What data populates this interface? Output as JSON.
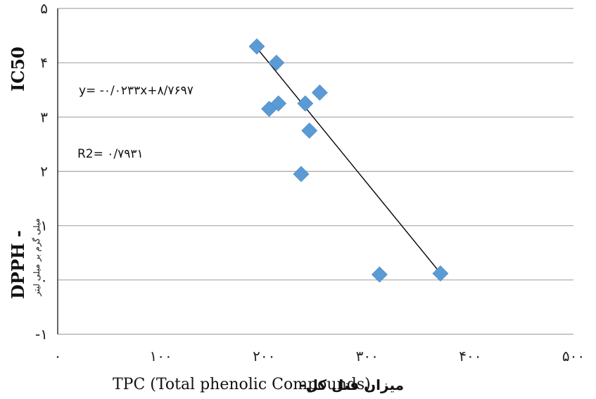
{
  "chart_data": {
    "type": "scatter",
    "title": "",
    "xlabel": "TPC (Total phenolic Compounds)",
    "xlabel_fa": "میزان فنل کل-",
    "ylabel_main": "DPPH  -",
    "ylabel_ic": "IC50",
    "ylabel_unit": "میلی گرم بر میلی لیتر",
    "xlim": [
      0,
      500
    ],
    "ylim": [
      -1,
      5
    ],
    "x_ticks": [
      {
        "value": 0,
        "label": "۰"
      },
      {
        "value": 100,
        "label": "۱۰۰"
      },
      {
        "value": 200,
        "label": "۲۰۰"
      },
      {
        "value": 300,
        "label": "۳۰۰"
      },
      {
        "value": 400,
        "label": "۴۰۰"
      },
      {
        "value": 500,
        "label": "۵۰۰"
      }
    ],
    "y_ticks": [
      {
        "value": -1,
        "label": "-۱"
      },
      {
        "value": 0,
        "label": "۰"
      },
      {
        "value": 1,
        "label": "۱"
      },
      {
        "value": 2,
        "label": "۲"
      },
      {
        "value": 3,
        "label": "۳"
      },
      {
        "value": 4,
        "label": "۴"
      },
      {
        "value": 5,
        "label": "۵"
      }
    ],
    "grid": true,
    "series": [
      {
        "marker": "diamond",
        "color": "#5b9bd5",
        "points": [
          {
            "x": 193,
            "y": 4.3
          },
          {
            "x": 212,
            "y": 4.0
          },
          {
            "x": 205,
            "y": 3.15
          },
          {
            "x": 214,
            "y": 3.25
          },
          {
            "x": 240,
            "y": 3.25
          },
          {
            "x": 254,
            "y": 3.45
          },
          {
            "x": 244,
            "y": 2.75
          },
          {
            "x": 236,
            "y": 1.95
          },
          {
            "x": 312,
            "y": 0.1
          },
          {
            "x": 371,
            "y": 0.12
          }
        ]
      }
    ],
    "trendline": {
      "x_start": 194,
      "x_end": 371,
      "color": "#000000",
      "equation": "y= -۰/۰۲۳۳x+۸/۷۶۹۷",
      "r2": "R2= ۰/۷۹۳۱"
    }
  }
}
